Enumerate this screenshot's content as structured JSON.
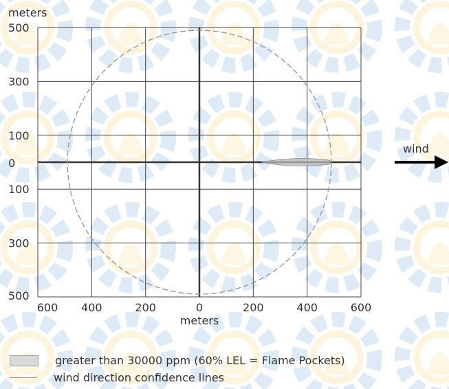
{
  "chart_data": {
    "type": "scatter",
    "xlabel": "meters",
    "ylabel": "meters",
    "xlim": [
      -600,
      600
    ],
    "ylim": [
      -500,
      500
    ],
    "x_ticks": [
      -600,
      -400,
      -200,
      0,
      200,
      400,
      600
    ],
    "x_tick_labels": [
      "600",
      "400",
      "200",
      "0",
      "200",
      "400",
      "600"
    ],
    "y_ticks": [
      500,
      300,
      100,
      0,
      -100,
      -300,
      -500
    ],
    "y_tick_labels": [
      "500",
      "300",
      "100",
      "0",
      "100",
      "300",
      "500"
    ],
    "grid": true,
    "confidence_circle_radius": 490,
    "flame_pocket_zone": {
      "x_start": 230,
      "x_end": 485,
      "half_width": 12
    },
    "wind": {
      "label": "wind",
      "direction": "east"
    },
    "legend": [
      {
        "label": "greater than 30000 ppm (60% LEL = Flame Pockets)",
        "swatch": "shaded-box"
      },
      {
        "label": "wind direction confidence lines",
        "swatch": "line"
      }
    ],
    "colors": {
      "grid": "#444444",
      "axis": "#333333",
      "zone_fill": "#b5b5b5",
      "circle": "#9a9a9a",
      "arrow": "#000000"
    }
  }
}
